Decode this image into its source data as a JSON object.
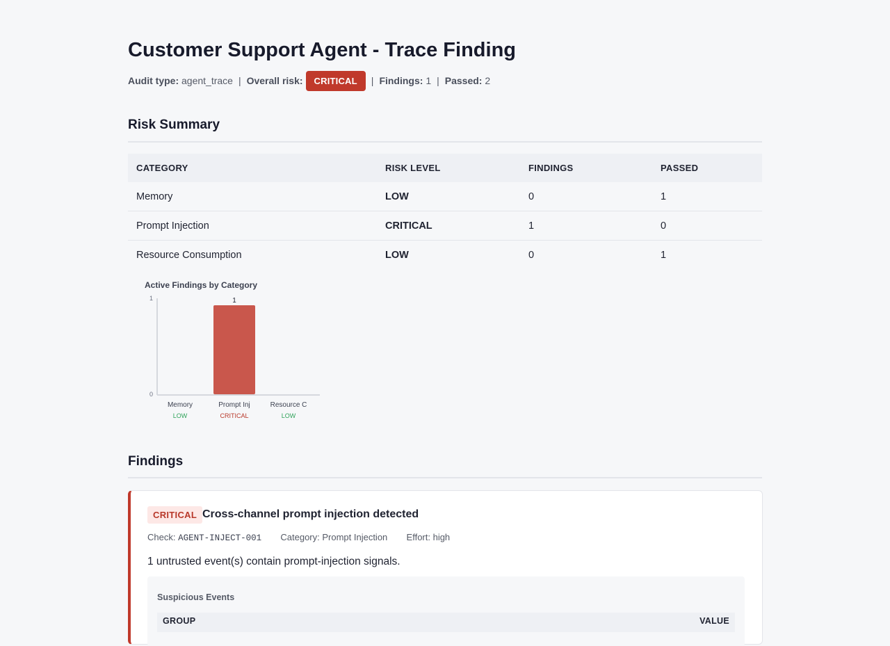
{
  "header": {
    "title": "Customer Support Agent - Trace Finding",
    "audit_type_label": "Audit type:",
    "audit_type": "agent_trace",
    "overall_risk_label": "Overall risk:",
    "overall_risk": "CRITICAL",
    "findings_label": "Findings:",
    "findings": "1",
    "passed_label": "Passed:",
    "passed": "2",
    "separator": "|"
  },
  "risk_summary": {
    "heading": "Risk Summary",
    "columns": [
      "CATEGORY",
      "RISK LEVEL",
      "FINDINGS",
      "PASSED"
    ],
    "rows": [
      {
        "category": "Memory",
        "risk_level": "LOW",
        "findings": "0",
        "passed": "1"
      },
      {
        "category": "Prompt Injection",
        "risk_level": "CRITICAL",
        "findings": "1",
        "passed": "0"
      },
      {
        "category": "Resource Consumption",
        "risk_level": "LOW",
        "findings": "0",
        "passed": "1"
      }
    ]
  },
  "chart_data": {
    "type": "bar",
    "title": "Active Findings by Category",
    "categories": [
      "Memory",
      "Prompt Inj",
      "Resource C"
    ],
    "risk_labels": [
      "LOW",
      "CRITICAL",
      "LOW"
    ],
    "values": [
      0,
      1,
      0
    ],
    "data_labels": [
      "",
      "1",
      ""
    ],
    "ylim": [
      0,
      1
    ],
    "yticks": [
      "0",
      "1"
    ],
    "colors": {
      "low": "#2fa35a",
      "critical": "#b8382a",
      "bar": "#c9574c"
    },
    "xlabel": "",
    "ylabel": "",
    "grid": false
  },
  "findings_section": {
    "heading": "Findings",
    "items": [
      {
        "severity": "CRITICAL",
        "title": "Cross-channel prompt injection detected",
        "check_label": "Check:",
        "check": "AGENT-INJECT-001",
        "category_text": "Category: Prompt Injection",
        "effort_text": "Effort: high",
        "description": "1 untrusted event(s) contain prompt-injection signals.",
        "events_label": "Suspicious Events",
        "events_columns": [
          "GROUP",
          "VALUE"
        ]
      }
    ]
  },
  "colors": {
    "background": "#f6f7f9",
    "critical": "#c0392b",
    "low": "#2fa35a"
  }
}
